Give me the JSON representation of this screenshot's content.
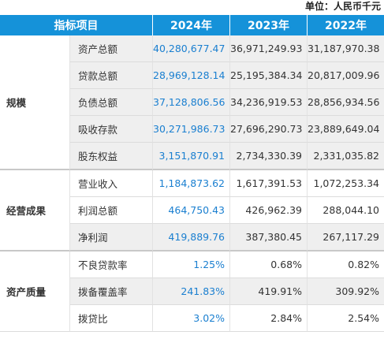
{
  "unit_label": "单位：人民币千元",
  "header": {
    "indicator": "指标项目",
    "years": [
      "2024年",
      "2023年",
      "2022年"
    ]
  },
  "groups": [
    {
      "name": "规模",
      "rows": [
        {
          "item": "资产总额",
          "values": [
            "40,280,677.47",
            "36,971,249.93",
            "31,187,970.38"
          ]
        },
        {
          "item": "贷款总额",
          "values": [
            "28,969,128.14",
            "25,195,384.34",
            "20,817,009.96"
          ]
        },
        {
          "item": "负债总额",
          "values": [
            "37,128,806.56",
            "34,236,919.53",
            "28,856,934.56"
          ]
        },
        {
          "item": "吸收存款",
          "values": [
            "30,271,986.73",
            "27,696,290.73",
            "23,889,649.04"
          ]
        },
        {
          "item": "股东权益",
          "values": [
            "3,151,870.91",
            "2,734,330.39",
            "2,331,035.82"
          ]
        }
      ]
    },
    {
      "name": "经营成果",
      "rows": [
        {
          "item": "营业收入",
          "values": [
            "1,184,873.62",
            "1,617,391.53",
            "1,072,253.34"
          ]
        },
        {
          "item": "利润总额",
          "values": [
            "464,750.43",
            "426,962.39",
            "288,044.10"
          ]
        },
        {
          "item": "净利润",
          "values": [
            "419,889.76",
            "387,380.45",
            "267,117.29"
          ]
        }
      ]
    },
    {
      "name": "资产质量",
      "rows": [
        {
          "item": "不良贷款率",
          "values": [
            "1.25%",
            "0.68%",
            "0.82%"
          ]
        },
        {
          "item": "拨备覆盖率",
          "values": [
            "241.83%",
            "419.91%",
            "309.92%"
          ]
        },
        {
          "item": "拨贷比",
          "values": [
            "3.02%",
            "2.84%",
            "2.54%"
          ]
        }
      ]
    }
  ]
}
